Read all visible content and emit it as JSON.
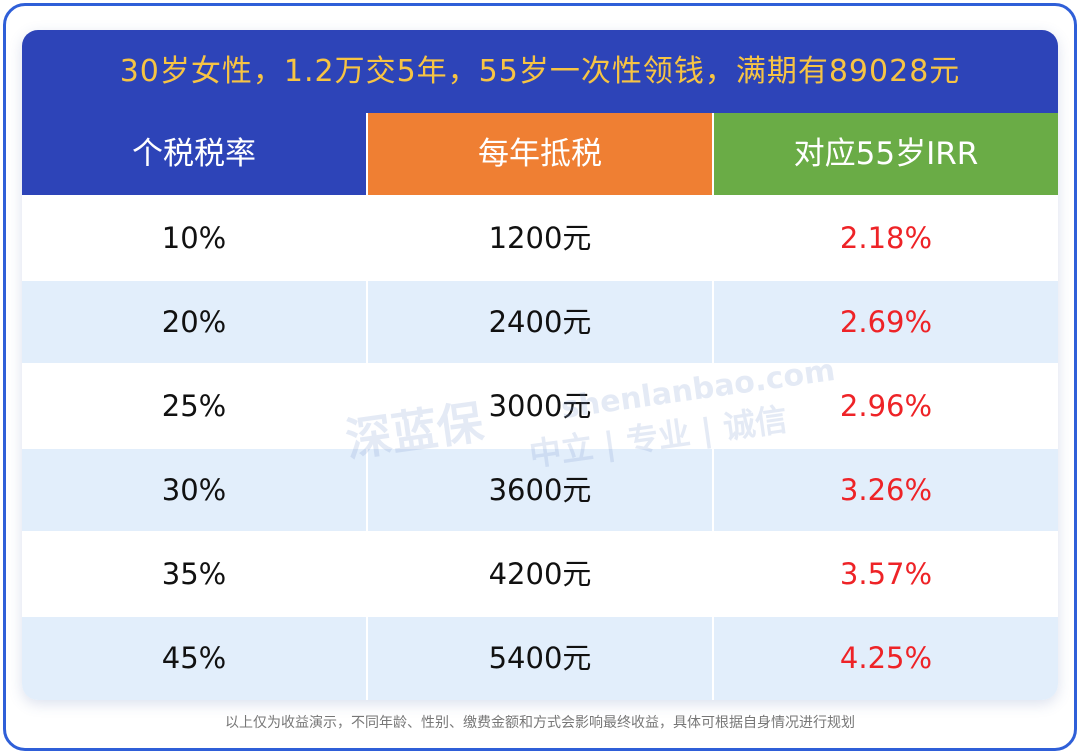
{
  "header": {
    "title": "30岁女性，1.2万交5年，55岁一次性领钱，满期有89028元"
  },
  "table": {
    "columns": [
      "个税税率",
      "每年抵税",
      "对应55岁IRR"
    ],
    "rows": [
      [
        "10%",
        "1200元",
        "2.18%"
      ],
      [
        "20%",
        "2400元",
        "2.69%"
      ],
      [
        "25%",
        "3000元",
        "2.96%"
      ],
      [
        "30%",
        "3600元",
        "3.26%"
      ],
      [
        "35%",
        "4200元",
        "3.57%"
      ],
      [
        "45%",
        "5400元",
        "4.25%"
      ]
    ]
  },
  "watermark": {
    "logo": "深蓝保",
    "url": "shenlanbao.com",
    "slogan": "中立 | 专业 | 诚信"
  },
  "footer": {
    "note": "以上仅为收益演示，不同年龄、性别、缴费金额和方式会影响最终收益，具体可根据自身情况进行规划"
  }
}
